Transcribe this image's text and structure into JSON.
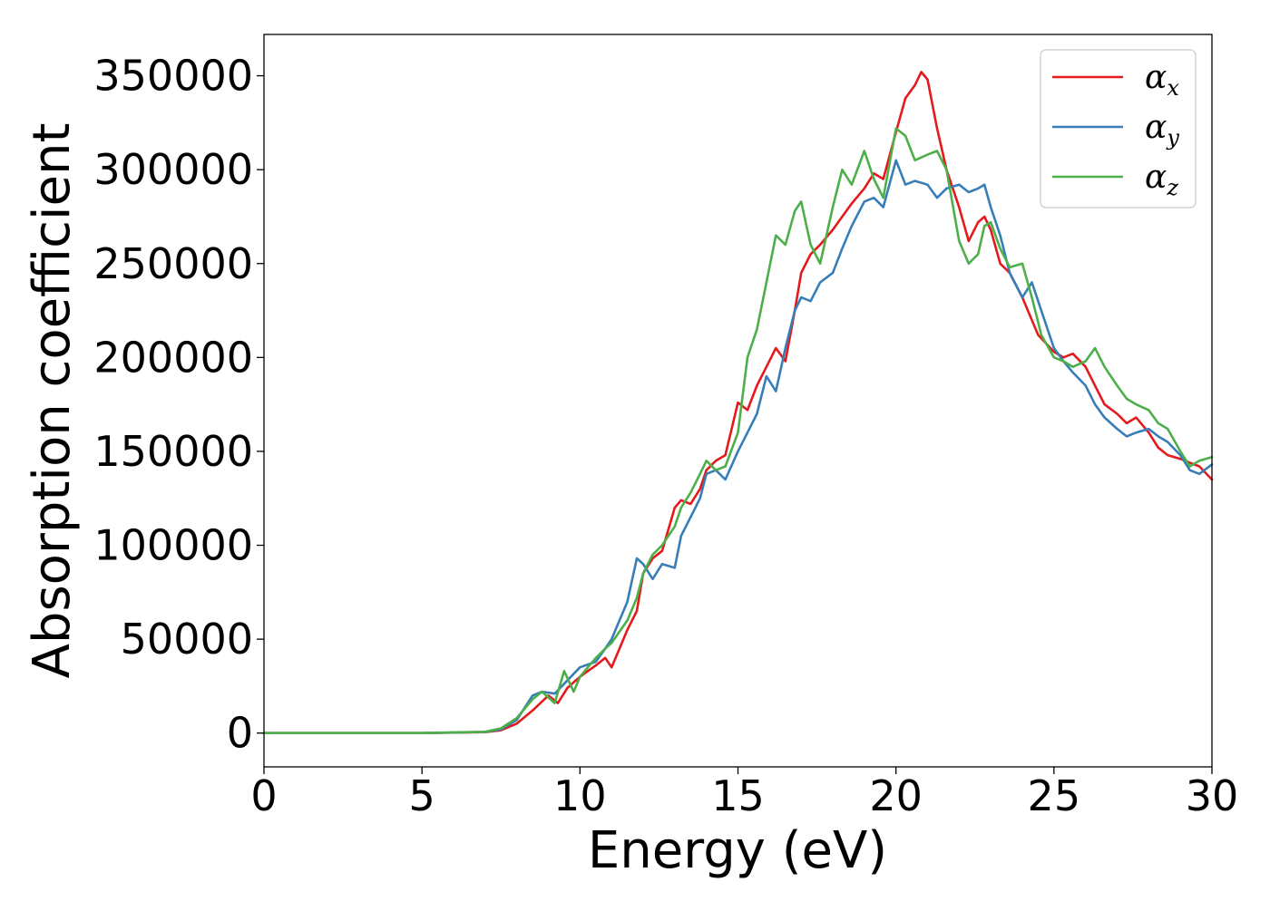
{
  "chart_data": {
    "type": "line",
    "xlabel": "Energy (eV)",
    "ylabel": "Absorption coefficient",
    "xlim": [
      0,
      30
    ],
    "ylim": [
      -18000,
      372000
    ],
    "xticks": [
      0,
      5,
      10,
      15,
      20,
      25,
      30
    ],
    "xtick_labels": [
      "0",
      "5",
      "10",
      "15",
      "20",
      "25",
      "30"
    ],
    "yticks": [
      0,
      50000,
      100000,
      150000,
      200000,
      250000,
      300000,
      350000
    ],
    "ytick_labels": [
      "0",
      "50000",
      "100000",
      "150000",
      "200000",
      "250000",
      "300000",
      "350000"
    ],
    "grid": false,
    "legend_position": "top-right",
    "series": [
      {
        "name": "α",
        "subscript": "x",
        "color": "#e41a1c",
        "x": [
          0,
          5,
          7,
          7.5,
          8,
          8.5,
          9,
          9.3,
          9.6,
          10,
          10.5,
          10.8,
          11,
          11.5,
          11.8,
          12,
          12.3,
          12.6,
          13,
          13.2,
          13.5,
          13.8,
          14,
          14.3,
          14.6,
          15,
          15.3,
          15.6,
          15.9,
          16.2,
          16.5,
          16.8,
          17,
          17.3,
          17.6,
          18,
          18.3,
          18.6,
          19,
          19.3,
          19.6,
          20,
          20.3,
          20.6,
          20.8,
          21,
          21.3,
          21.6,
          22,
          22.3,
          22.6,
          22.8,
          23,
          23.3,
          23.6,
          24,
          24.5,
          25,
          25.3,
          25.6,
          26,
          26.3,
          26.6,
          27,
          27.3,
          27.6,
          28,
          28.3,
          28.6,
          29,
          29.3,
          29.6,
          30
        ],
        "y": [
          0,
          0,
          500,
          1500,
          5000,
          12000,
          20000,
          16000,
          24000,
          30000,
          36000,
          40000,
          35000,
          55000,
          65000,
          85000,
          93000,
          97000,
          120000,
          124000,
          122000,
          130000,
          140000,
          145000,
          148000,
          176000,
          172000,
          185000,
          195000,
          205000,
          198000,
          225000,
          245000,
          255000,
          260000,
          268000,
          275000,
          282000,
          290000,
          298000,
          295000,
          320000,
          338000,
          345000,
          352000,
          348000,
          322000,
          300000,
          280000,
          262000,
          272000,
          275000,
          268000,
          250000,
          245000,
          232000,
          212000,
          203000,
          200000,
          202000,
          195000,
          185000,
          175000,
          170000,
          165000,
          168000,
          160000,
          152000,
          148000,
          146000,
          144000,
          142000,
          135000
        ]
      },
      {
        "name": "α",
        "subscript": "y",
        "color": "#377eb8",
        "x": [
          0,
          5,
          7,
          7.5,
          8,
          8.5,
          8.8,
          9.2,
          9.6,
          10,
          10.5,
          10.8,
          11,
          11.5,
          11.8,
          12,
          12.3,
          12.6,
          13,
          13.2,
          13.5,
          13.8,
          14,
          14.3,
          14.6,
          15,
          15.3,
          15.6,
          15.9,
          16.2,
          16.5,
          16.8,
          17,
          17.3,
          17.6,
          18,
          18.3,
          18.6,
          19,
          19.3,
          19.6,
          20,
          20.3,
          20.6,
          21,
          21.3,
          21.6,
          22,
          22.3,
          22.6,
          22.8,
          23,
          23.3,
          23.6,
          24,
          24.3,
          24.6,
          25,
          25.3,
          25.6,
          26,
          26.3,
          26.6,
          27,
          27.3,
          27.6,
          28,
          28.3,
          28.6,
          29,
          29.3,
          29.6,
          30
        ],
        "y": [
          0,
          0,
          600,
          2000,
          7000,
          20000,
          22000,
          21000,
          28000,
          35000,
          38000,
          45000,
          50000,
          70000,
          93000,
          90000,
          82000,
          90000,
          88000,
          105000,
          115000,
          125000,
          138000,
          140000,
          135000,
          150000,
          160000,
          170000,
          190000,
          182000,
          205000,
          225000,
          232000,
          230000,
          240000,
          245000,
          258000,
          270000,
          283000,
          285000,
          280000,
          305000,
          292000,
          294000,
          292000,
          285000,
          290000,
          292000,
          288000,
          290000,
          292000,
          280000,
          265000,
          245000,
          232000,
          240000,
          225000,
          205000,
          198000,
          192000,
          185000,
          175000,
          168000,
          162000,
          158000,
          160000,
          162000,
          158000,
          155000,
          148000,
          140000,
          138000,
          143000
        ]
      },
      {
        "name": "α",
        "subscript": "z",
        "color": "#4daf4a",
        "x": [
          0,
          5,
          7,
          7.5,
          8,
          8.5,
          8.8,
          9.2,
          9.5,
          9.8,
          10,
          10.5,
          10.8,
          11,
          11.5,
          11.8,
          12,
          12.3,
          12.6,
          13,
          13.2,
          13.5,
          13.8,
          14,
          14.3,
          14.6,
          15,
          15.3,
          15.6,
          15.9,
          16.2,
          16.5,
          16.8,
          17,
          17.3,
          17.6,
          18,
          18.3,
          18.6,
          19,
          19.3,
          19.6,
          20,
          20.3,
          20.6,
          21,
          21.3,
          21.6,
          22,
          22.3,
          22.6,
          22.8,
          23,
          23.3,
          23.6,
          24,
          24.3,
          24.6,
          25,
          25.3,
          25.6,
          26,
          26.3,
          26.6,
          27,
          27.3,
          27.6,
          28,
          28.3,
          28.6,
          29,
          29.3,
          29.6,
          30
        ],
        "y": [
          0,
          0,
          700,
          2500,
          8000,
          18000,
          22000,
          16000,
          33000,
          22000,
          30000,
          40000,
          45000,
          48000,
          60000,
          72000,
          85000,
          95000,
          100000,
          110000,
          120000,
          128000,
          138000,
          145000,
          140000,
          142000,
          160000,
          200000,
          215000,
          240000,
          265000,
          260000,
          278000,
          283000,
          260000,
          250000,
          280000,
          300000,
          292000,
          310000,
          295000,
          285000,
          322000,
          318000,
          305000,
          308000,
          310000,
          300000,
          262000,
          250000,
          255000,
          270000,
          272000,
          258000,
          248000,
          250000,
          232000,
          212000,
          200000,
          198000,
          195000,
          198000,
          205000,
          195000,
          185000,
          178000,
          175000,
          172000,
          165000,
          162000,
          150000,
          142000,
          145000,
          147000
        ]
      }
    ]
  }
}
